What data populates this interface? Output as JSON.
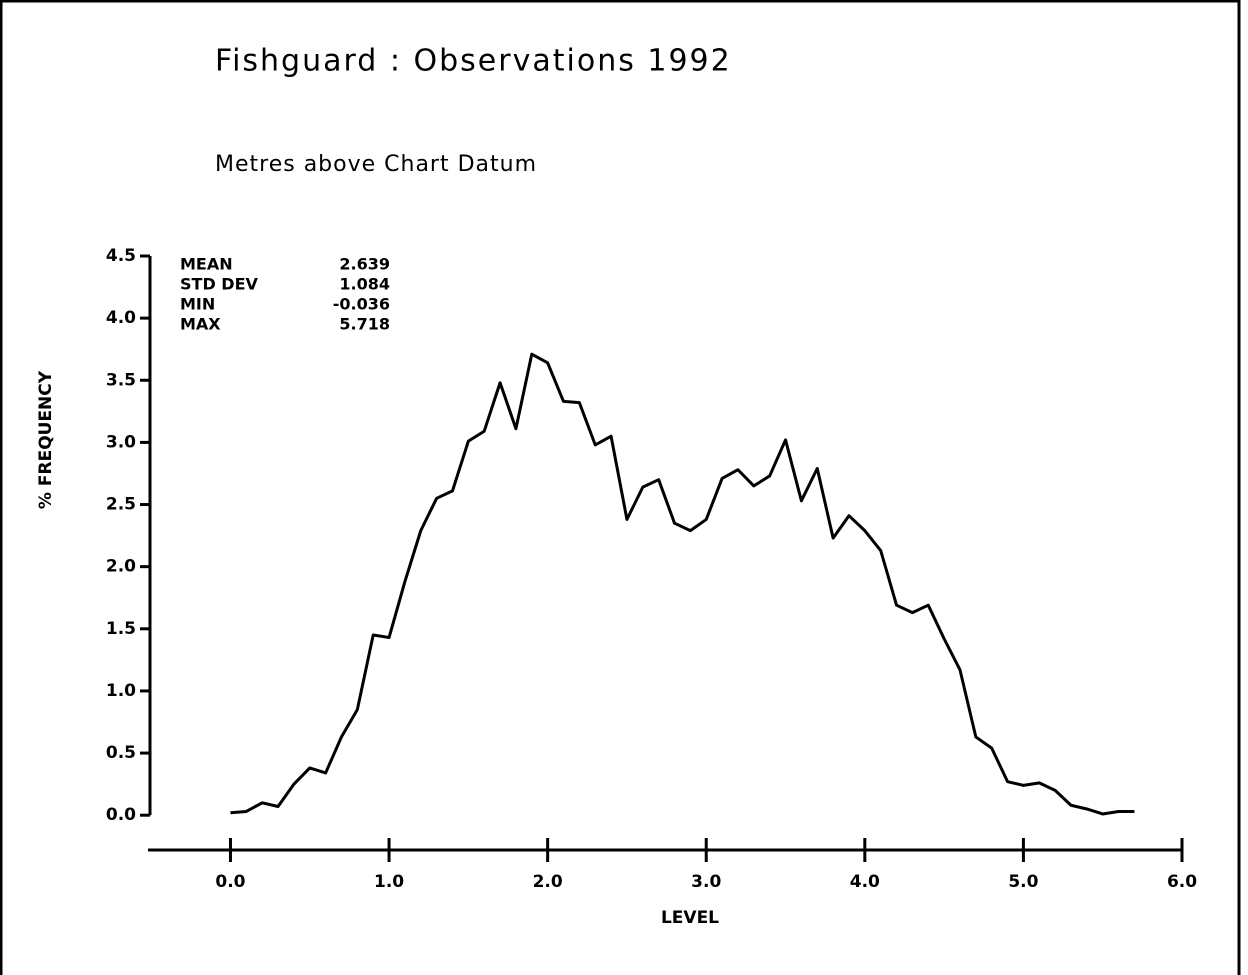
{
  "chart_data": {
    "type": "line",
    "title": "Fishguard : Observations 1992",
    "subtitle": "Metres above Chart Datum",
    "xlabel": "LEVEL",
    "ylabel": "% FREQUENCY",
    "stats": [
      {
        "label": "MEAN",
        "value": "2.639"
      },
      {
        "label": "STD DEV",
        "value": "1.084"
      },
      {
        "label": "MIN",
        "value": "-0.036"
      },
      {
        "label": "MAX",
        "value": "5.718"
      }
    ],
    "x": [
      0.0,
      0.1,
      0.2,
      0.3,
      0.4,
      0.5,
      0.6,
      0.7,
      0.8,
      0.9,
      1.0,
      1.1,
      1.2,
      1.3,
      1.4,
      1.5,
      1.6,
      1.7,
      1.8,
      1.9,
      2.0,
      2.1,
      2.2,
      2.3,
      2.4,
      2.5,
      2.6,
      2.7,
      2.8,
      2.9,
      3.0,
      3.1,
      3.2,
      3.3,
      3.4,
      3.5,
      3.6,
      3.7,
      3.8,
      3.9,
      4.0,
      4.1,
      4.2,
      4.3,
      4.4,
      4.5,
      4.6,
      4.7,
      4.8,
      4.9,
      5.0,
      5.1,
      5.2,
      5.3,
      5.4,
      5.5,
      5.6,
      5.7
    ],
    "series": [
      {
        "name": "frequency",
        "color": "#000000",
        "values": [
          0.02,
          0.03,
          0.1,
          0.07,
          0.25,
          0.38,
          0.34,
          0.63,
          0.85,
          1.45,
          1.43,
          1.88,
          2.29,
          2.55,
          2.61,
          3.01,
          3.09,
          3.48,
          3.11,
          3.71,
          3.64,
          3.33,
          3.32,
          2.98,
          3.05,
          2.38,
          2.64,
          2.7,
          2.35,
          2.29,
          2.38,
          2.71,
          2.78,
          2.65,
          2.73,
          3.02,
          2.53,
          2.79,
          2.23,
          2.41,
          2.29,
          2.13,
          1.69,
          1.63,
          1.69,
          1.42,
          1.17,
          0.63,
          0.54,
          0.27,
          0.24,
          0.26,
          0.2,
          0.08,
          0.05,
          0.01,
          0.03,
          0.03
        ]
      }
    ],
    "xlim": [
      -0.52,
      6.0
    ],
    "ylim": [
      -0.28,
      4.5
    ],
    "xticks": [
      {
        "value": 0,
        "label": "0.0"
      },
      {
        "value": 1,
        "label": "1.0"
      },
      {
        "value": 2,
        "label": "2.0"
      },
      {
        "value": 3,
        "label": "3.0"
      },
      {
        "value": 4,
        "label": "4.0"
      },
      {
        "value": 5,
        "label": "5.0"
      },
      {
        "value": 6,
        "label": "6.0"
      }
    ],
    "yticks": [
      {
        "value": 0,
        "label": "0.0"
      },
      0.5,
      {
        "value": 1,
        "label": "1.0"
      },
      1.5,
      {
        "value": 2,
        "label": "2.0"
      },
      2.5,
      {
        "value": 3,
        "label": "3.0"
      },
      3.5,
      {
        "value": 4,
        "label": "4.0"
      },
      4.5
    ],
    "grid": false
  }
}
